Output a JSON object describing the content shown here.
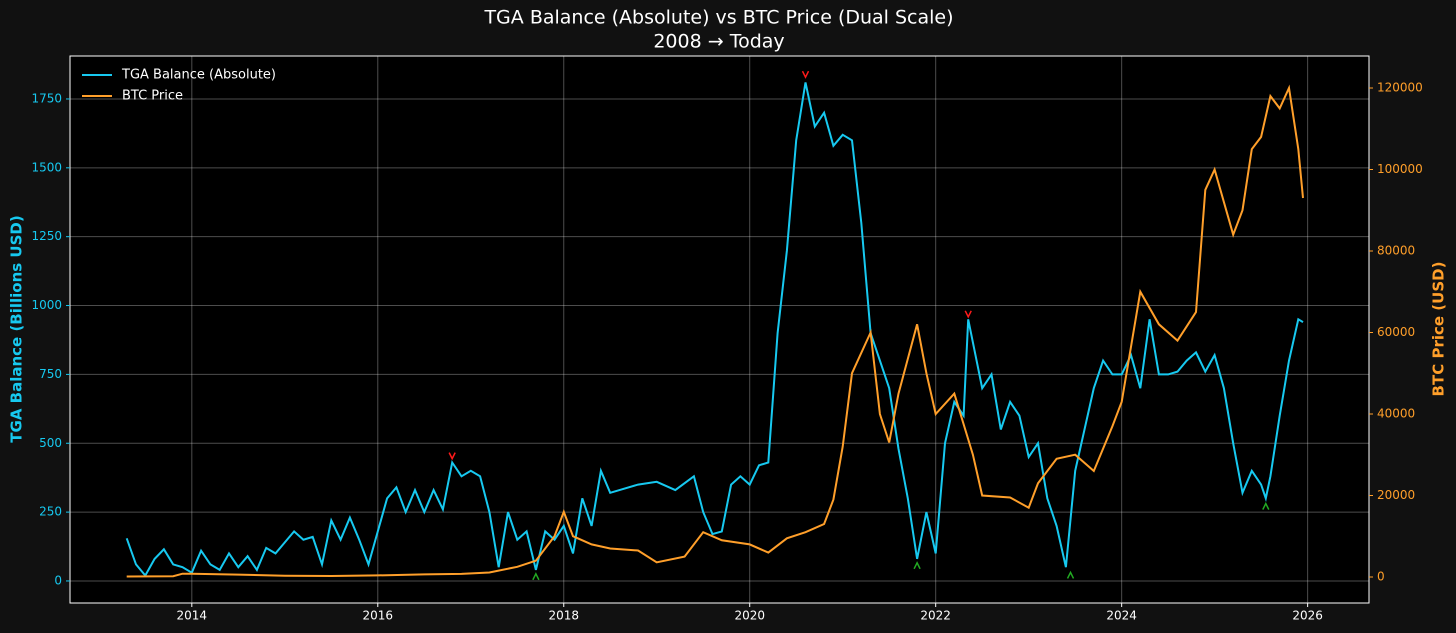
{
  "chart_data": {
    "type": "line",
    "title": "TGA Balance (Absolute) vs BTC Price (Dual Scale)",
    "subtitle": "2008 → Today",
    "y_label": "TGA Balance (Billions USD)",
    "y2_label": "BTC Price (USD)",
    "xlim": [
      2012.69,
      2026.66
    ],
    "xticks": [
      2014,
      2016,
      2018,
      2020,
      2022,
      2024,
      2026
    ],
    "ylim": [
      -80,
      1906
    ],
    "yticks": [
      0,
      250,
      500,
      750,
      1000,
      1250,
      1500,
      1750
    ],
    "y2lim": [
      -6380,
      127850
    ],
    "y2ticks": [
      0,
      20000,
      40000,
      60000,
      80000,
      100000,
      120000
    ],
    "grid": true,
    "legend": "upper left",
    "series": [
      {
        "name": "TGA Balance (Absolute)",
        "color": "#17c9f0",
        "x": [
          2013.3,
          2013.4,
          2013.5,
          2013.6,
          2013.7,
          2013.8,
          2013.9,
          2014.0,
          2014.1,
          2014.2,
          2014.3,
          2014.4,
          2014.5,
          2014.6,
          2014.7,
          2014.8,
          2014.9,
          2015.0,
          2015.1,
          2015.2,
          2015.3,
          2015.4,
          2015.5,
          2015.6,
          2015.7,
          2015.8,
          2015.9,
          2016.0,
          2016.1,
          2016.2,
          2016.3,
          2016.4,
          2016.5,
          2016.6,
          2016.7,
          2016.8,
          2016.9,
          2017.0,
          2017.1,
          2017.2,
          2017.3,
          2017.4,
          2017.5,
          2017.6,
          2017.7,
          2017.8,
          2017.9,
          2018.0,
          2018.1,
          2018.2,
          2018.3,
          2018.4,
          2018.5,
          2018.6,
          2018.8,
          2019.0,
          2019.2,
          2019.4,
          2019.5,
          2019.6,
          2019.7,
          2019.8,
          2019.9,
          2020.0,
          2020.1,
          2020.2,
          2020.3,
          2020.4,
          2020.5,
          2020.6,
          2020.7,
          2020.8,
          2020.9,
          2021.0,
          2021.1,
          2021.2,
          2021.3,
          2021.4,
          2021.5,
          2021.6,
          2021.7,
          2021.8,
          2021.9,
          2022.0,
          2022.1,
          2022.2,
          2022.3,
          2022.35,
          2022.5,
          2022.6,
          2022.7,
          2022.8,
          2022.9,
          2023.0,
          2023.1,
          2023.2,
          2023.3,
          2023.4,
          2023.5,
          2023.6,
          2023.7,
          2023.8,
          2023.9,
          2024.0,
          2024.1,
          2024.2,
          2024.3,
          2024.4,
          2024.5,
          2024.6,
          2024.7,
          2024.8,
          2024.9,
          2025.0,
          2025.1,
          2025.2,
          2025.3,
          2025.4,
          2025.5,
          2025.55,
          2025.6,
          2025.7,
          2025.8,
          2025.9,
          2025.95
        ],
        "values": [
          155,
          60,
          20,
          80,
          115,
          60,
          50,
          30,
          110,
          60,
          40,
          100,
          50,
          90,
          40,
          120,
          100,
          140,
          180,
          150,
          160,
          60,
          220,
          150,
          230,
          150,
          60,
          180,
          300,
          340,
          250,
          330,
          250,
          330,
          260,
          430,
          380,
          400,
          380,
          250,
          50,
          250,
          150,
          180,
          40,
          180,
          150,
          200,
          100,
          300,
          200,
          400,
          320,
          330,
          350,
          360,
          330,
          380,
          250,
          170,
          180,
          350,
          380,
          350,
          420,
          430,
          900,
          1200,
          1600,
          1810,
          1650,
          1700,
          1580,
          1620,
          1600,
          1300,
          900,
          800,
          700,
          480,
          300,
          80,
          250,
          100,
          500,
          650,
          600,
          950,
          700,
          750,
          550,
          650,
          600,
          450,
          500,
          300,
          200,
          50,
          400,
          550,
          700,
          800,
          750,
          750,
          820,
          700,
          950,
          750,
          750,
          760,
          800,
          830,
          760,
          820,
          700,
          500,
          320,
          400,
          350,
          300,
          380,
          600,
          800,
          950,
          940
        ]
      },
      {
        "name": "BTC Price",
        "color": "#ff9f2a",
        "axis": "y2",
        "x": [
          2013.3,
          2013.8,
          2013.9,
          2014.0,
          2014.5,
          2015.0,
          2015.5,
          2016.0,
          2016.5,
          2016.9,
          2017.2,
          2017.5,
          2017.7,
          2017.9,
          2018.0,
          2018.1,
          2018.3,
          2018.5,
          2018.8,
          2019.0,
          2019.3,
          2019.5,
          2019.7,
          2020.0,
          2020.2,
          2020.4,
          2020.6,
          2020.8,
          2020.9,
          2021.0,
          2021.1,
          2021.3,
          2021.4,
          2021.5,
          2021.6,
          2021.8,
          2021.9,
          2022.0,
          2022.2,
          2022.4,
          2022.5,
          2022.8,
          2023.0,
          2023.1,
          2023.3,
          2023.5,
          2023.7,
          2023.9,
          2024.0,
          2024.2,
          2024.4,
          2024.6,
          2024.8,
          2024.9,
          2025.0,
          2025.2,
          2025.3,
          2025.4,
          2025.5,
          2025.6,
          2025.7,
          2025.8,
          2025.9,
          2025.95
        ],
        "values": [
          130,
          200,
          800,
          800,
          600,
          300,
          250,
          400,
          650,
          750,
          1100,
          2500,
          4000,
          10000,
          16000,
          10000,
          8000,
          7000,
          6500,
          3600,
          5000,
          11000,
          9000,
          8000,
          6000,
          9500,
          11000,
          13000,
          19000,
          32000,
          50000,
          60000,
          40000,
          33000,
          45000,
          62000,
          50000,
          40000,
          45000,
          30000,
          20000,
          19500,
          17000,
          23000,
          29000,
          30000,
          26000,
          37000,
          43000,
          70000,
          62000,
          58000,
          65000,
          95000,
          100000,
          84000,
          90000,
          105000,
          108000,
          118000,
          115000,
          120000,
          105000,
          93000
        ]
      }
    ],
    "peaks": {
      "color": "#ff1a1a",
      "x": [
        2016.8,
        2020.6,
        2022.35
      ],
      "values": [
        455,
        1840,
        970
      ]
    },
    "troughs": {
      "color": "#22aa22",
      "x": [
        2017.7,
        2021.8,
        2023.45,
        2025.55
      ],
      "values": [
        15,
        55,
        20,
        270
      ]
    }
  }
}
